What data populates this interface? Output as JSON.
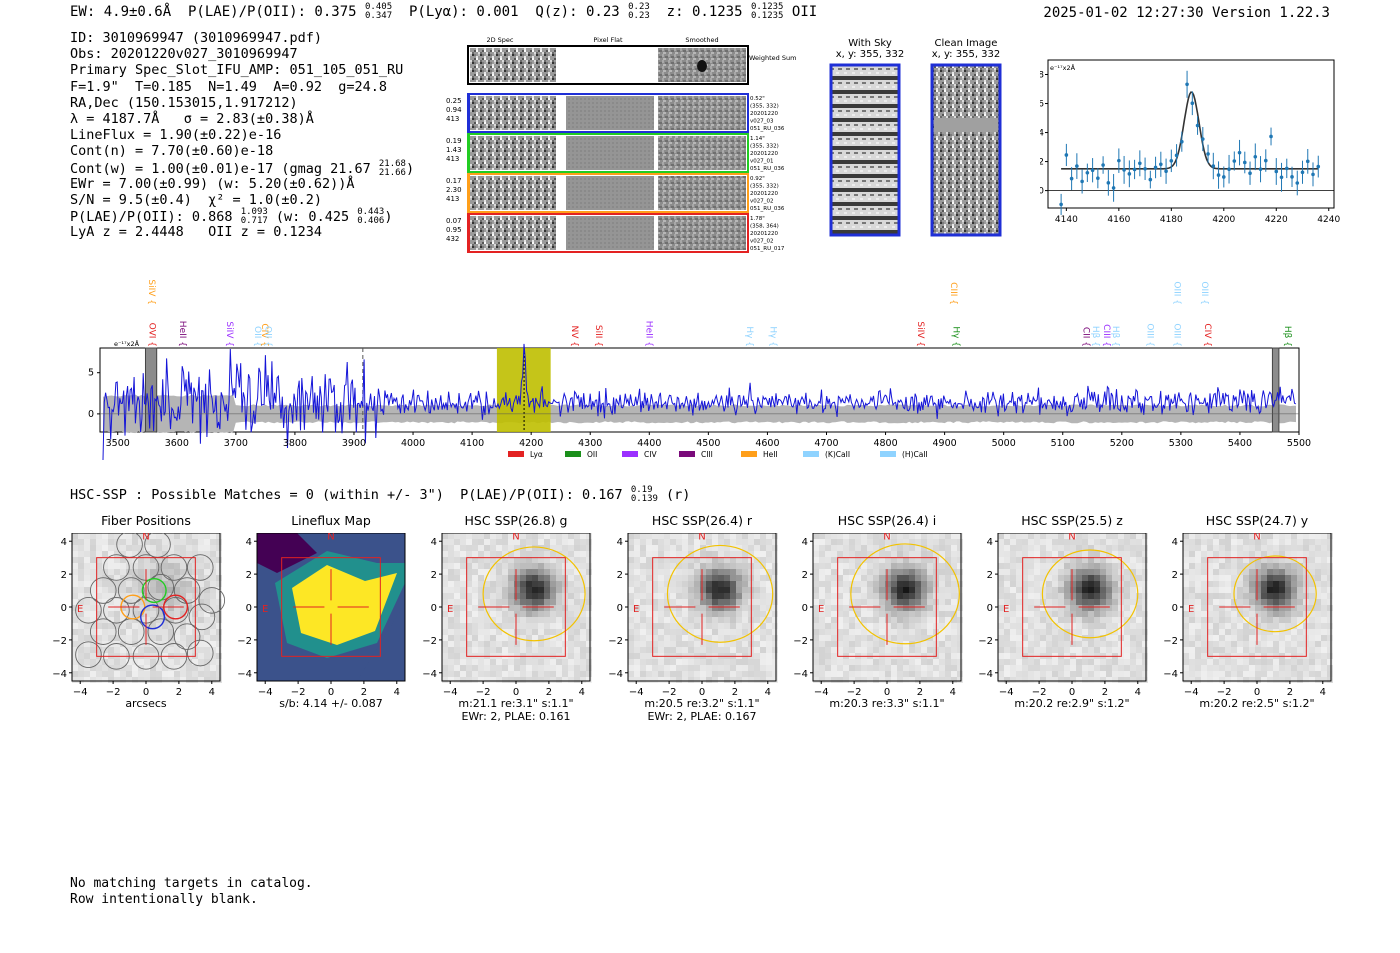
{
  "header": {
    "ew_line": "EW: 4.9±0.6Å  P(LAE)/P(OII): 0.375",
    "ew_plae_hi": "0.405",
    "ew_plae_lo": "0.347",
    "plya": "  P(Lyα): 0.001  Q(z): 0.23",
    "qz_hi": "0.23",
    "qz_lo": "0.23",
    "z_text": "  z: 0.1235",
    "z_hi": "0.1235",
    "z_lo": "0.1235",
    "z_suffix": " OII",
    "timestamp": "2025-01-02 12:27:30",
    "version": "Version 1.22.3"
  },
  "info": {
    "id": "ID: 3010969947 (3010969947.pdf)",
    "obs": "Obs: 20201220v027_3010969947",
    "slot": "Primary Spec_Slot_IFU_AMP: 051_105_051_RU",
    "params": "F=1.9\"  T=0.185  N=1.49  A=0.92  g=24.8",
    "radec": "RA,Dec (150.153015,1.917212)",
    "lambda": "λ = 4187.7Å   σ = 2.83(±0.38)Å",
    "lineflux": "LineFlux = 1.90(±0.22)e-16",
    "contn": "Cont(n) = 7.70(±0.60)e-18",
    "contw": "Cont(w) = 1.00(±0.01)e-17 (gmag 21.67",
    "gmag_hi": "21.68",
    "gmag_lo": "21.66",
    "ewr": "EWr = 7.00(±0.99) (w: 5.20(±0.62))Å",
    "sn": "S/N = 9.5(±0.4)  χ² = 1.0(±0.2)",
    "plae": "P(LAE)/P(OII): 0.868",
    "plae_hi": "1.093",
    "plae_lo": "0.717",
    "plae_w": " (w: 0.425",
    "plae_w_hi": "0.443",
    "plae_w_lo": "0.406",
    "lyaz": "LyA z = 2.4448   OII z = 0.1234"
  },
  "cutouts": {
    "col_2d": "2D Spec",
    "col_flat": "Pixel Flat",
    "col_smooth": "Smoothed",
    "weighted": "Weighted Sum",
    "rows": [
      {
        "left": [
          "0.25",
          "0.94",
          "413"
        ],
        "right": [
          "0.52\"",
          "(355, 332)",
          "20201220",
          "v027_03",
          "051_RU_036"
        ],
        "color": "#1f2fd6"
      },
      {
        "left": [
          "0.19",
          "1.43",
          "413"
        ],
        "right": [
          "1.14\"",
          "(355, 332)",
          "20201220",
          "v027_01",
          "051_RU_036"
        ],
        "color": "#22cc22"
      },
      {
        "left": [
          "0.17",
          "2.30",
          "413"
        ],
        "right": [
          "0.92\"",
          "(355, 332)",
          "20201220",
          "v027_02",
          "051_RU_036"
        ],
        "color": "#ff9f1a"
      },
      {
        "left": [
          "0.07",
          "0.95",
          "432"
        ],
        "right": [
          "1.78\"",
          "(358, 364)",
          "20201220",
          "v027_02",
          "051_RU_017"
        ],
        "color": "#e32222"
      }
    ],
    "with_sky": "With Sky",
    "with_sky_xy": "x, y: 355, 332",
    "clean": "Clean Image",
    "clean_xy": "x, y: 355, 332"
  },
  "zoom_fit": {
    "unit": "e⁻¹⁷x2Å",
    "x_ticks": [
      "4140",
      "4160",
      "4180",
      "4200",
      "4220",
      "4240"
    ],
    "y_ticks": [
      "0",
      "2",
      "4",
      "6",
      "8"
    ]
  },
  "spectrum": {
    "unit": "e⁻¹⁷x2Å",
    "x_ticks": [
      "3500",
      "3600",
      "3700",
      "3800",
      "3900",
      "4000",
      "4100",
      "4200",
      "4300",
      "4400",
      "4500",
      "4600",
      "4700",
      "4800",
      "4900",
      "5000",
      "5100",
      "5200",
      "5300",
      "5400",
      "5500"
    ],
    "y_ticks": [
      "0",
      "5"
    ],
    "lines": [
      {
        "label": "OVI",
        "x": 3549,
        "color": "#e32222",
        "row": "mid"
      },
      {
        "label": "SiIV",
        "x": 3548,
        "color": "#ff9f1a",
        "row": "top"
      },
      {
        "label": "HeII",
        "x": 3600,
        "color": "#7a0a7a",
        "row": "mid"
      },
      {
        "label": "SiIV",
        "x": 3680,
        "color": "#9b30ff",
        "row": "mid"
      },
      {
        "label": "OII",
        "x": 3727,
        "color": "#8fd3ff",
        "row": "mid"
      },
      {
        "label": "CIV",
        "x": 3739,
        "color": "#ff9f1a",
        "row": "mid"
      },
      {
        "label": "OII",
        "x": 3745,
        "color": "#8fd3ff",
        "row": "mid"
      },
      {
        "label": "NV",
        "x": 4264,
        "color": "#e32222",
        "row": "mid"
      },
      {
        "label": "SiII",
        "x": 4305,
        "color": "#e32222",
        "row": "mid"
      },
      {
        "label": "HeII",
        "x": 4390,
        "color": "#9b30ff",
        "row": "mid"
      },
      {
        "label": "Hγ",
        "x": 4560,
        "color": "#8fd3ff",
        "row": "mid"
      },
      {
        "label": "Hγ",
        "x": 4600,
        "color": "#8fd3ff",
        "row": "mid"
      },
      {
        "label": "SiIV",
        "x": 4850,
        "color": "#e32222",
        "row": "mid"
      },
      {
        "label": "CIII",
        "x": 4906,
        "color": "#ff9f1a",
        "row": "top"
      },
      {
        "label": "Hγ",
        "x": 4910,
        "color": "#1a8f1a",
        "row": "mid"
      },
      {
        "label": "CII",
        "x": 5130,
        "color": "#7a0a7a",
        "row": "mid"
      },
      {
        "label": "Hβ",
        "x": 5146,
        "color": "#8fd3ff",
        "row": "mid"
      },
      {
        "label": "CIII",
        "x": 5165,
        "color": "#9b30ff",
        "row": "mid"
      },
      {
        "label": "Hβ",
        "x": 5180,
        "color": "#8fd3ff",
        "row": "mid"
      },
      {
        "label": "OIII",
        "x": 5238,
        "color": "#8fd3ff",
        "row": "mid"
      },
      {
        "label": "OIII",
        "x": 5284,
        "color": "#8fd3ff",
        "row": "top"
      },
      {
        "label": "OIII",
        "x": 5284,
        "color": "#8fd3ff",
        "row": "mid"
      },
      {
        "label": "OIII",
        "x": 5331,
        "color": "#8fd3ff",
        "row": "top"
      },
      {
        "label": "CIV",
        "x": 5336,
        "color": "#e32222",
        "row": "mid"
      },
      {
        "label": "Hβ",
        "x": 5471,
        "color": "#1a8f1a",
        "row": "mid"
      }
    ],
    "legend": [
      {
        "label": "Lyα",
        "color": "#e32222"
      },
      {
        "label": "OII",
        "color": "#1a8f1a"
      },
      {
        "label": "CIV",
        "color": "#9b30ff"
      },
      {
        "label": "CIII",
        "color": "#7a0a7a"
      },
      {
        "label": "HeII",
        "color": "#ff9f1a"
      },
      {
        "label": "(K)CaII",
        "color": "#8fd3ff"
      },
      {
        "label": "(H)CaII",
        "color": "#8fd3ff"
      }
    ]
  },
  "hsc": {
    "summary": "HSC-SSP : Possible Matches = 0 (within +/- 3\")  P(LAE)/P(OII): 0.167",
    "sum_hi": "0.19",
    "sum_lo": "0.139",
    "sum_band": " (r)",
    "ticks": [
      "−4",
      "−2",
      "0",
      "2",
      "4"
    ],
    "north": "N",
    "east": "E",
    "panels": [
      {
        "title": "Fiber Positions",
        "cap1": "arcsecs",
        "cap2": ""
      },
      {
        "title": "Lineflux Map",
        "cap1": "s/b: 4.14 +/- 0.087",
        "cap2": ""
      },
      {
        "title": "HSC SSP(26.8) g",
        "cap1": "m:21.1  re:3.1\"  s:1.1\"",
        "cap2": "EWr: 2, PLAE: 0.161"
      },
      {
        "title": "HSC SSP(26.4) r",
        "cap1": "m:20.5  re:3.2\"  s:1.1\"",
        "cap2": "EWr: 2, PLAE: 0.167"
      },
      {
        "title": "HSC SSP(26.4) i",
        "cap1": "m:20.3  re:3.3\"  s:1.1\"",
        "cap2": ""
      },
      {
        "title": "HSC SSP(25.5) z",
        "cap1": "m:20.2  re:2.9\"  s:1.2\"",
        "cap2": ""
      },
      {
        "title": "HSC SSP(24.7) y",
        "cap1": "m:20.2  re:2.5\"  s:1.2\"",
        "cap2": ""
      }
    ]
  },
  "footer": {
    "line1": "No matching targets in catalog.",
    "line2": "Row intentionally blank."
  }
}
